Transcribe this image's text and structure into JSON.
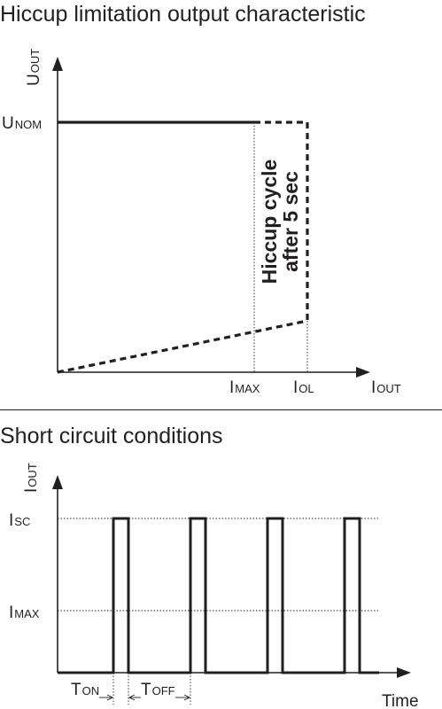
{
  "top_chart": {
    "title": "Hiccup limitation output characteristic",
    "y_axis": {
      "main": "U",
      "sub": "OUT"
    },
    "x_axis": {
      "main": "I",
      "sub": "OUT"
    },
    "y_marker": {
      "main": "U",
      "sub": "NOM"
    },
    "x_marker_1": {
      "main": "I",
      "sub": "MAX"
    },
    "x_marker_2": {
      "main": "I",
      "sub": "OL"
    },
    "annotation_line_1": "Hiccup cycle",
    "annotation_line_2": "after 5 sec"
  },
  "bottom_chart": {
    "title": "Short circuit conditions",
    "y_axis": {
      "main": "I",
      "sub": "OUT"
    },
    "x_axis_label": "Time",
    "y_marker_high": {
      "main": "I",
      "sub": "SC"
    },
    "y_marker_low": {
      "main": "I",
      "sub": "MAX"
    },
    "t_on": {
      "main": "T",
      "sub": "ON"
    },
    "t_off": {
      "main": "T",
      "sub": "OFF"
    },
    "pulse_count": 4
  },
  "colors": {
    "ink": "#231f20",
    "background": "#ffffff"
  }
}
